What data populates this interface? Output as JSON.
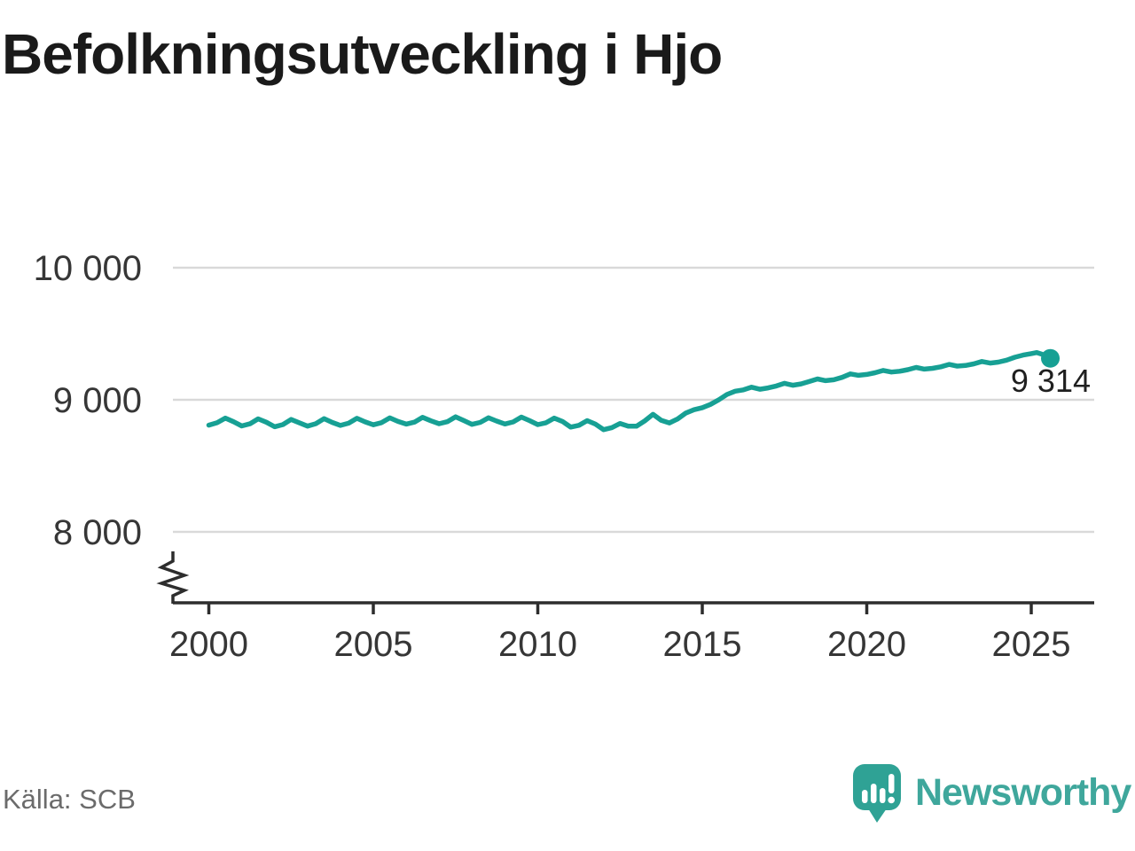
{
  "title": "Befolkningsutveckling i Hjo",
  "footer": {
    "source": "Källa: SCB",
    "brand": "Newsworthy"
  },
  "colors": {
    "line": "#17A094",
    "grid": "#D9D9D9",
    "axis": "#2D2D2D",
    "tick_text": "#363636",
    "end_label_text": "#1F1F1F",
    "muted_text": "#6B6B6B",
    "logo_bubble": "#2FA295",
    "brand_text": "#3FA79C"
  },
  "chart_data": {
    "type": "line",
    "title": "Befolkningsutveckling i Hjo",
    "xlabel": "",
    "ylabel": "",
    "grid": "horizontal",
    "legend": "none",
    "x_range": [
      1998.9,
      2026.9
    ],
    "y_range_shown": [
      8000,
      10000
    ],
    "y_axis_break": true,
    "end_label": "9 314",
    "end_value": 9314,
    "x_ticks": [
      {
        "value": 2000,
        "label": "2000"
      },
      {
        "value": 2005,
        "label": "2005"
      },
      {
        "value": 2010,
        "label": "2010"
      },
      {
        "value": 2015,
        "label": "2015"
      },
      {
        "value": 2020,
        "label": "2020"
      },
      {
        "value": 2025,
        "label": "2025"
      }
    ],
    "y_ticks": [
      {
        "value": 8000,
        "label": "8 000"
      },
      {
        "value": 9000,
        "label": "9 000"
      },
      {
        "value": 10000,
        "label": "10 000"
      }
    ],
    "points": [
      [
        2000.0,
        8808
      ],
      [
        2000.25,
        8826
      ],
      [
        2000.5,
        8861
      ],
      [
        2000.75,
        8834
      ],
      [
        2001.0,
        8802
      ],
      [
        2001.25,
        8818
      ],
      [
        2001.5,
        8856
      ],
      [
        2001.75,
        8830
      ],
      [
        2002.0,
        8796
      ],
      [
        2002.25,
        8812
      ],
      [
        2002.5,
        8851
      ],
      [
        2002.75,
        8826
      ],
      [
        2003.0,
        8801
      ],
      [
        2003.25,
        8819
      ],
      [
        2003.5,
        8857
      ],
      [
        2003.75,
        8829
      ],
      [
        2004.0,
        8806
      ],
      [
        2004.25,
        8823
      ],
      [
        2004.5,
        8860
      ],
      [
        2004.75,
        8833
      ],
      [
        2005.0,
        8811
      ],
      [
        2005.25,
        8827
      ],
      [
        2005.5,
        8863
      ],
      [
        2005.75,
        8836
      ],
      [
        2006.0,
        8816
      ],
      [
        2006.25,
        8831
      ],
      [
        2006.5,
        8867
      ],
      [
        2006.75,
        8841
      ],
      [
        2007.0,
        8819
      ],
      [
        2007.25,
        8834
      ],
      [
        2007.5,
        8871
      ],
      [
        2007.75,
        8843
      ],
      [
        2008.0,
        8814
      ],
      [
        2008.25,
        8829
      ],
      [
        2008.5,
        8864
      ],
      [
        2008.75,
        8839
      ],
      [
        2009.0,
        8817
      ],
      [
        2009.25,
        8832
      ],
      [
        2009.5,
        8869
      ],
      [
        2009.75,
        8842
      ],
      [
        2010.0,
        8812
      ],
      [
        2010.25,
        8826
      ],
      [
        2010.5,
        8861
      ],
      [
        2010.75,
        8836
      ],
      [
        2011.0,
        8793
      ],
      [
        2011.25,
        8807
      ],
      [
        2011.5,
        8842
      ],
      [
        2011.75,
        8816
      ],
      [
        2012.0,
        8774
      ],
      [
        2012.25,
        8789
      ],
      [
        2012.5,
        8821
      ],
      [
        2012.75,
        8801
      ],
      [
        2013.0,
        8800
      ],
      [
        2013.25,
        8840
      ],
      [
        2013.5,
        8890
      ],
      [
        2013.75,
        8845
      ],
      [
        2014.0,
        8825
      ],
      [
        2014.25,
        8855
      ],
      [
        2014.5,
        8900
      ],
      [
        2014.75,
        8925
      ],
      [
        2015.0,
        8940
      ],
      [
        2015.25,
        8965
      ],
      [
        2015.5,
        9000
      ],
      [
        2015.75,
        9040
      ],
      [
        2016.0,
        9065
      ],
      [
        2016.25,
        9075
      ],
      [
        2016.5,
        9095
      ],
      [
        2016.75,
        9080
      ],
      [
        2017.0,
        9090
      ],
      [
        2017.25,
        9105
      ],
      [
        2017.5,
        9125
      ],
      [
        2017.75,
        9110
      ],
      [
        2018.0,
        9120
      ],
      [
        2018.25,
        9138
      ],
      [
        2018.5,
        9158
      ],
      [
        2018.75,
        9145
      ],
      [
        2019.0,
        9152
      ],
      [
        2019.25,
        9170
      ],
      [
        2019.5,
        9196
      ],
      [
        2019.75,
        9185
      ],
      [
        2020.0,
        9192
      ],
      [
        2020.25,
        9205
      ],
      [
        2020.5,
        9222
      ],
      [
        2020.75,
        9210
      ],
      [
        2021.0,
        9216
      ],
      [
        2021.25,
        9228
      ],
      [
        2021.5,
        9245
      ],
      [
        2021.75,
        9232
      ],
      [
        2022.0,
        9238
      ],
      [
        2022.25,
        9250
      ],
      [
        2022.5,
        9268
      ],
      [
        2022.75,
        9255
      ],
      [
        2023.0,
        9260
      ],
      [
        2023.25,
        9272
      ],
      [
        2023.5,
        9290
      ],
      [
        2023.75,
        9278
      ],
      [
        2024.0,
        9285
      ],
      [
        2024.25,
        9300
      ],
      [
        2024.5,
        9322
      ],
      [
        2024.75,
        9338
      ],
      [
        2025.0,
        9350
      ],
      [
        2025.17,
        9358
      ],
      [
        2025.33,
        9345
      ],
      [
        2025.58,
        9314
      ]
    ]
  }
}
